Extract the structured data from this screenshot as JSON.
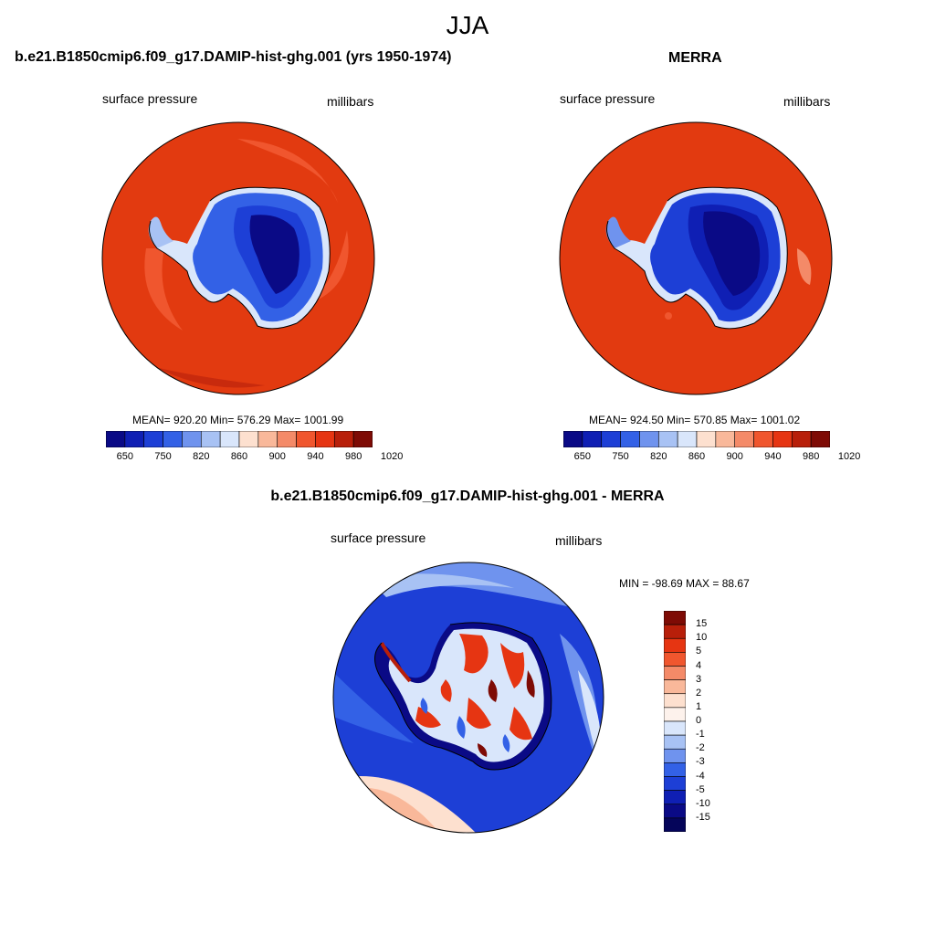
{
  "title": "JJA",
  "panels": [
    {
      "title": "b.e21.B1850cmip6.f09_g17.DAMIP-hist-ghg.001 (yrs 1950-1974)",
      "variable": "surface pressure",
      "units": "millibars",
      "stats": "MEAN= 920.20  Min= 576.29  Max= 1001.99"
    },
    {
      "title": "MERRA",
      "variable": "surface pressure",
      "units": "millibars",
      "stats": "MEAN= 924.50  Min= 570.85  Max= 1001.02"
    },
    {
      "title": "b.e21.B1850cmip6.f09_g17.DAMIP-hist-ghg.001 - MERRA",
      "variable": "surface pressure",
      "units": "millibars",
      "stats": "MIN = -98.69 MAX =  88.67"
    }
  ],
  "colorbar_abs": {
    "labels": [
      "650",
      "750",
      "820",
      "860",
      "900",
      "940",
      "980",
      "1020"
    ],
    "colors": [
      "#0a0a86",
      "#0f1fb4",
      "#1d3fd6",
      "#3361e6",
      "#6f93ee",
      "#a8c2f4",
      "#d9e6fb",
      "#fde0cf",
      "#f9b89a",
      "#f48a68",
      "#f0562e",
      "#e63512",
      "#b81f0a",
      "#7e0b05"
    ]
  },
  "colorbar_diff": {
    "labels": [
      "15",
      "10",
      "5",
      "4",
      "3",
      "2",
      "1",
      "0",
      "-1",
      "-2",
      "-3",
      "-4",
      "-5",
      "-10",
      "-15"
    ],
    "colors": [
      "#7e0b05",
      "#b81f0a",
      "#e63512",
      "#f0562e",
      "#f48a68",
      "#f9b89a",
      "#fde0cf",
      "#fdf2ec",
      "#d9e6fb",
      "#a8c2f4",
      "#6f93ee",
      "#3361e6",
      "#1d3fd6",
      "#0f1fb4",
      "#0a0a86",
      "#05055a"
    ]
  },
  "colors": {
    "ocean_high": "#e23a10",
    "ocean_mid": "#f0562e",
    "plateau": "#0a0a86"
  }
}
